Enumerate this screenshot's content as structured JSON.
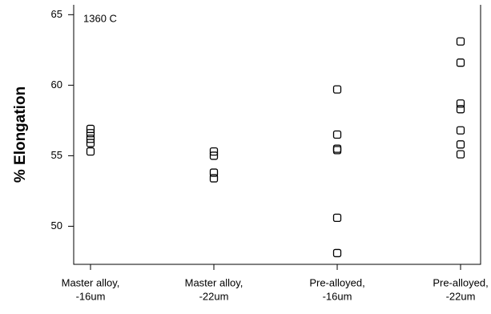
{
  "chart_data": {
    "type": "strip",
    "annotation": "1360 C",
    "y_label": "% Elongation",
    "categories": [
      [
        "Master alloy,",
        "-16um"
      ],
      [
        "Master alloy,",
        "-22um"
      ],
      [
        "Pre-alloyed,",
        "-16um"
      ],
      [
        "Pre-alloyed,",
        "-22um"
      ]
    ],
    "values": [
      [
        56.9,
        56.6,
        56.2,
        55.9,
        55.3
      ],
      [
        55.3,
        55.0,
        53.8,
        53.4
      ],
      [
        59.7,
        56.5,
        55.5,
        55.4,
        50.6,
        48.1
      ],
      [
        63.1,
        61.6,
        58.7,
        58.3,
        56.8,
        55.8,
        55.1
      ]
    ],
    "color": "#000000",
    "ylim": [
      47.3,
      65.7
    ],
    "yticks": [
      50,
      55,
      60,
      65
    ],
    "grid": false
  }
}
